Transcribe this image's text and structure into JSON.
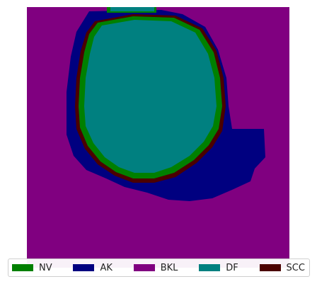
{
  "legend": {
    "items": [
      {
        "label": "NV",
        "color": "#008000"
      },
      {
        "label": "AK",
        "color": "#000080"
      },
      {
        "label": "BKL",
        "color": "#800080"
      },
      {
        "label": "DF",
        "color": "#008080"
      },
      {
        "label": "SCC",
        "color": "#4b0000"
      }
    ]
  },
  "map": {
    "background_class": "BKL",
    "border_color": "#4b0000"
  }
}
